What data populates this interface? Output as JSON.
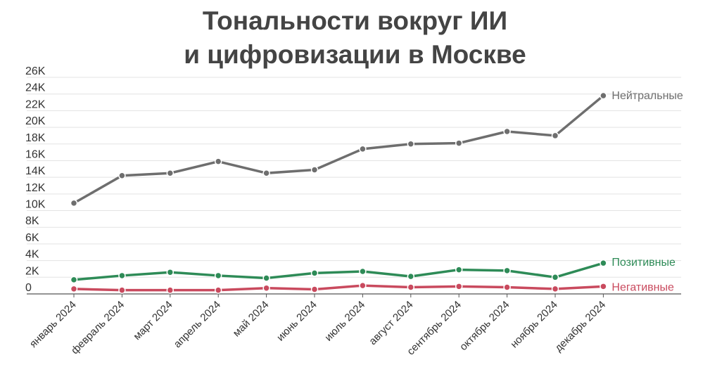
{
  "chart_data": {
    "type": "line",
    "title_line1": "Тональности вокруг ИИ",
    "title_line2": "и цифровизации в Москве",
    "xlabel": "",
    "ylabel": "",
    "ylim": [
      0,
      26000
    ],
    "yticks": [
      0,
      2000,
      4000,
      6000,
      8000,
      10000,
      12000,
      14000,
      16000,
      18000,
      20000,
      22000,
      24000,
      26000
    ],
    "ytick_labels": [
      "0",
      "2K",
      "4K",
      "6K",
      "8K",
      "10K",
      "12K",
      "14K",
      "16K",
      "18K",
      "20K",
      "22K",
      "24K",
      "26K"
    ],
    "categories": [
      "январь 2024",
      "февраль 2024",
      "март 2024",
      "апрель 2024",
      "май 2024",
      "июнь 2024",
      "июль 2024",
      "август 2024",
      "сентябрь 2024",
      "октябрь 2024",
      "ноябрь 2024",
      "декабрь 2024"
    ],
    "grid": true,
    "legend": "end-of-line labels",
    "series": [
      {
        "name": "Нейтральные",
        "color": "#6e6e6e",
        "values": [
          10900,
          14200,
          14500,
          15900,
          14500,
          14900,
          17400,
          18000,
          18100,
          19500,
          19000,
          23800
        ]
      },
      {
        "name": "Позитивные",
        "color": "#2e8b57",
        "values": [
          1700,
          2200,
          2600,
          2200,
          1900,
          2500,
          2700,
          2100,
          2900,
          2800,
          2000,
          3700
        ]
      },
      {
        "name": "Негативные",
        "color": "#c94a5e",
        "values": [
          600,
          450,
          450,
          450,
          700,
          550,
          1000,
          800,
          900,
          800,
          600,
          900
        ]
      }
    ]
  }
}
